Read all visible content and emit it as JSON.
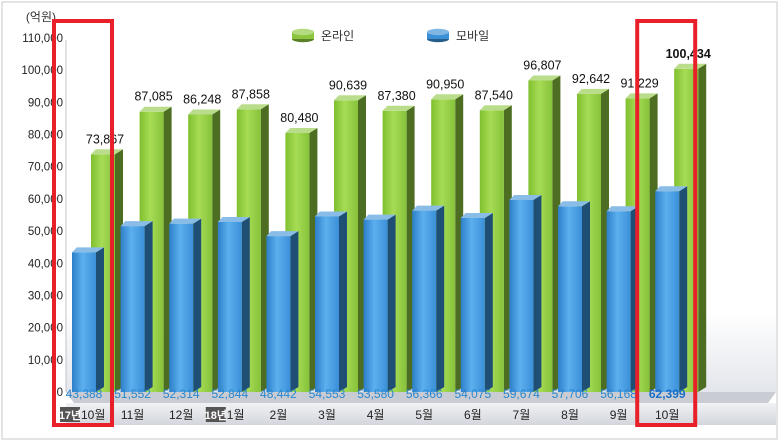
{
  "chart_data": {
    "type": "bar",
    "unit_label": "(억원)",
    "legend_position": "top-center",
    "ylim": [
      0,
      110000
    ],
    "yticks": [
      "0",
      "10,000",
      "20,000",
      "30,000",
      "40,000",
      "50,000",
      "60,000",
      "70,000",
      "80,000",
      "90,000",
      "100,000",
      "110,000"
    ],
    "grid": false,
    "categories": [
      {
        "year": "17년",
        "month": "10월"
      },
      {
        "year": "",
        "month": "11월"
      },
      {
        "year": "",
        "month": "12월"
      },
      {
        "year": "18년",
        "month": "1월"
      },
      {
        "year": "",
        "month": "2월"
      },
      {
        "year": "",
        "month": "3월"
      },
      {
        "year": "",
        "month": "4월"
      },
      {
        "year": "",
        "month": "5월"
      },
      {
        "year": "",
        "month": "6월"
      },
      {
        "year": "",
        "month": "7월"
      },
      {
        "year": "",
        "month": "8월"
      },
      {
        "year": "",
        "month": "9월"
      },
      {
        "year": "",
        "month": "10월"
      }
    ],
    "series": [
      {
        "name": "온라인",
        "color": "#8cc63e",
        "values": [
          73867,
          87085,
          86248,
          87858,
          80480,
          90639,
          87380,
          90950,
          87540,
          96807,
          92642,
          91229,
          100434
        ],
        "labels": [
          "73,867",
          "87,085",
          "86,248",
          "87,858",
          "80,480",
          "90,639",
          "87,380",
          "90,950",
          "87,540",
          "96,807",
          "92,642",
          "91,229",
          "100,434"
        ]
      },
      {
        "name": "모바일",
        "color": "#3a8fd6",
        "values": [
          43388,
          51552,
          52314,
          52844,
          48442,
          54553,
          53580,
          56366,
          54075,
          59674,
          57706,
          56168,
          62399
        ],
        "labels": [
          "43,388",
          "51,552",
          "52,314",
          "52,844",
          "48,442",
          "54,553",
          "53,580",
          "56,366",
          "54,075",
          "59,674",
          "57,706",
          "56,168",
          "62,399"
        ]
      }
    ],
    "highlighted_categories": [
      0,
      12
    ],
    "highlight_color": "#e8202a"
  }
}
